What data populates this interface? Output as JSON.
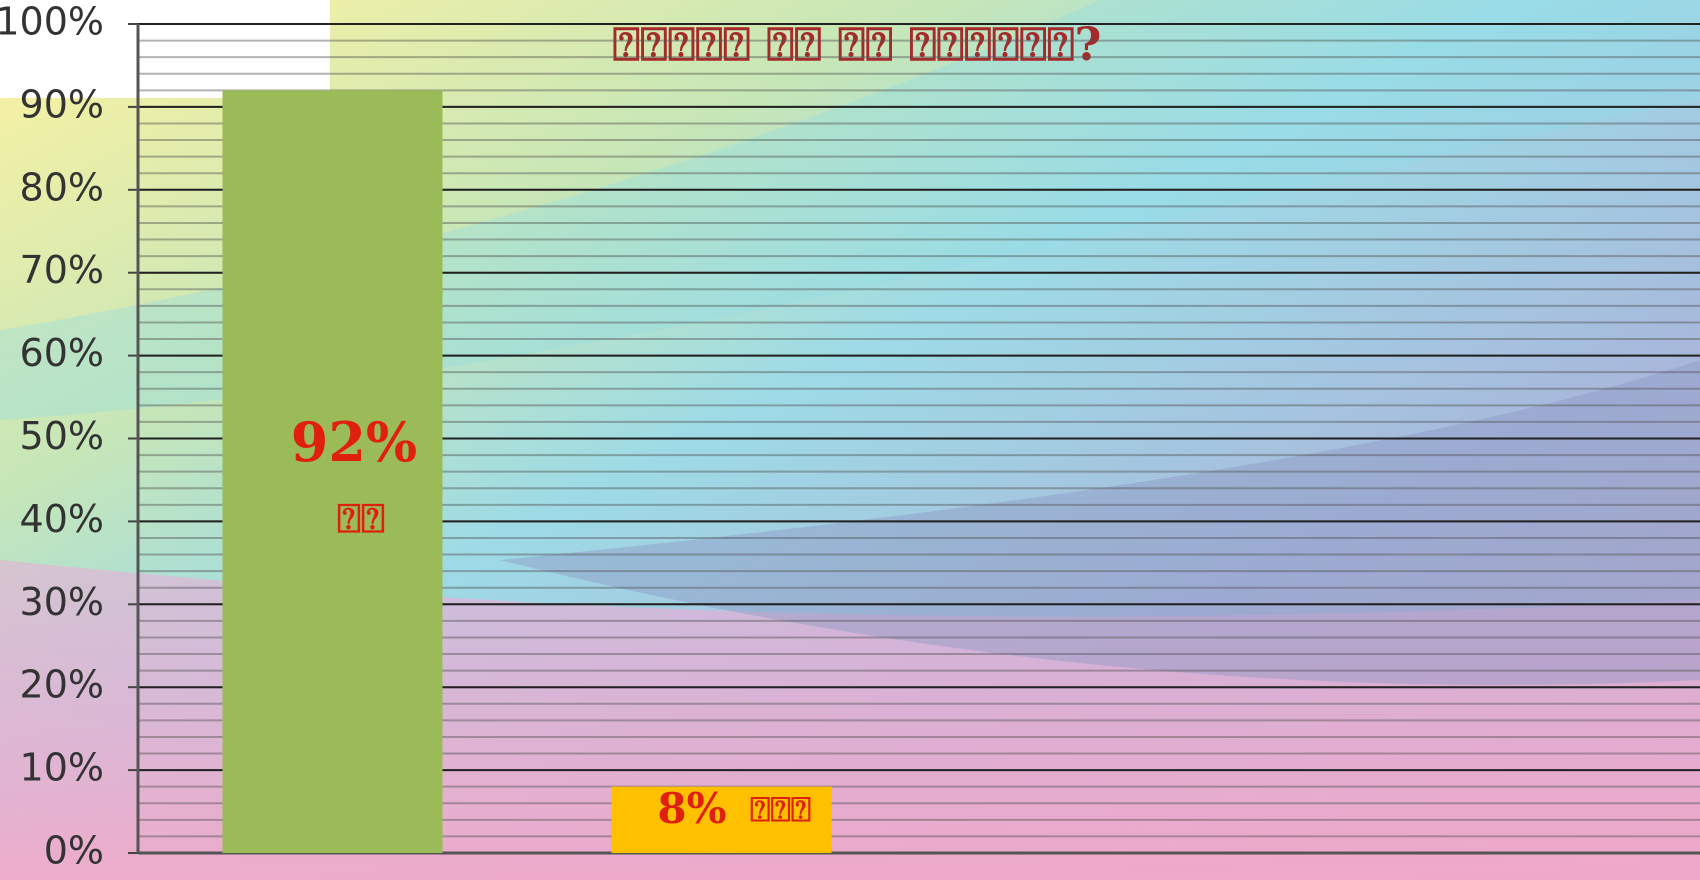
{
  "chart_data": {
    "type": "bar",
    "title": "⍰⍰⍰⍰⍰ ⍰⍰ ⍰⍰ ⍰⍰⍰⍰⍰⍰?",
    "categories": [
      "⍰⍰",
      "⍰⍰⍰"
    ],
    "values": [
      92,
      8
    ],
    "value_labels": [
      "92%",
      "8%"
    ],
    "colors": [
      "#9bbb59",
      "#ffc000"
    ],
    "ylim": [
      0,
      100
    ],
    "yticks": [
      {
        "value": 0,
        "label": "0%"
      },
      {
        "value": 10,
        "label": "10%"
      },
      {
        "value": 20,
        "label": "20%"
      },
      {
        "value": 30,
        "label": "30%"
      },
      {
        "value": 40,
        "label": "40%"
      },
      {
        "value": 50,
        "label": "50%"
      },
      {
        "value": 60,
        "label": "60%"
      },
      {
        "value": 70,
        "label": "70%"
      },
      {
        "value": 80,
        "label": "80%"
      },
      {
        "value": 90,
        "label": "90%"
      },
      {
        "value": 100,
        "label": "100%"
      }
    ],
    "grid": true
  }
}
